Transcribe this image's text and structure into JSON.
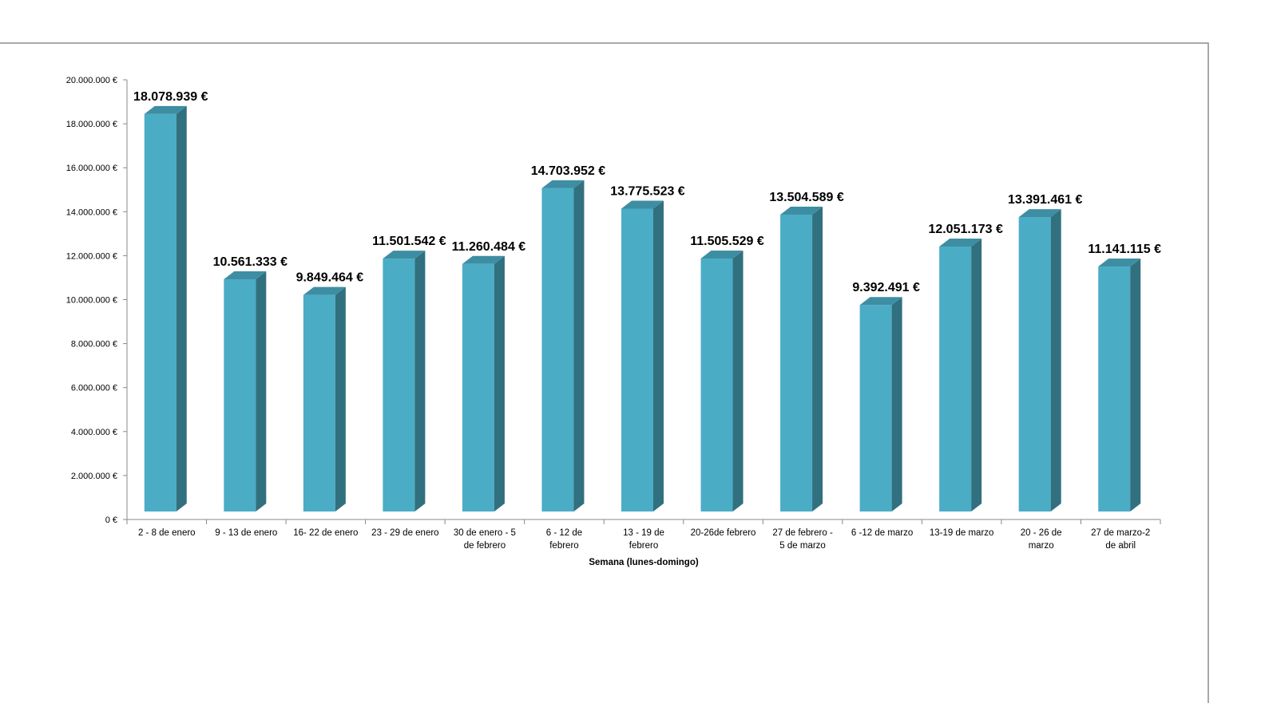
{
  "chart_data": {
    "type": "bar",
    "style": "3d-column",
    "title": "",
    "xlabel": "Semana (lunes-domingo)",
    "ylabel": "",
    "ylim": [
      0,
      20000000
    ],
    "ytick_step": 2000000,
    "ytick_labels": [
      "0 €",
      "2.000.000 €",
      "4.000.000 €",
      "6.000.000 €",
      "8.000.000 €",
      "10.000.000 €",
      "12.000.000 €",
      "14.000.000 €",
      "16.000.000 €",
      "18.000.000 €",
      "20.000.000 €"
    ],
    "grid": false,
    "legend": "none",
    "colors": {
      "bar_front": "#4bacc6",
      "bar_side": "#31707f",
      "bar_top": "#3e8ea3",
      "axis": "#888888",
      "frame": "#8c8c8c"
    },
    "categories": [
      [
        "2 - 8 de enero"
      ],
      [
        "9 - 13 de enero"
      ],
      [
        "16- 22 de enero"
      ],
      [
        "23 - 29 de enero"
      ],
      [
        "30 de enero - 5",
        "de febrero"
      ],
      [
        "6 - 12 de",
        "febrero"
      ],
      [
        "13 - 19 de",
        "febrero"
      ],
      [
        "20-26de febrero"
      ],
      [
        "27 de febrero -",
        "5 de marzo"
      ],
      [
        "6 -12 de marzo"
      ],
      [
        "13-19 de marzo"
      ],
      [
        "20 - 26 de",
        "marzo"
      ],
      [
        "27 de marzo-2",
        "de abril"
      ]
    ],
    "values": [
      18078939,
      10561333,
      9849464,
      11501542,
      11260484,
      14703952,
      13775523,
      11505529,
      13504589,
      9392491,
      12051173,
      13391461,
      11141115
    ],
    "data_labels": [
      "18.078.939 €",
      "10.561.333 €",
      "9.849.464 €",
      "11.501.542 €",
      "11.260.484 €",
      "14.703.952 €",
      "13.775.523 €",
      "11.505.529 €",
      "13.504.589 €",
      "9.392.491 €",
      "12.051.173 €",
      "13.391.461 €",
      "11.141.115 €"
    ]
  }
}
